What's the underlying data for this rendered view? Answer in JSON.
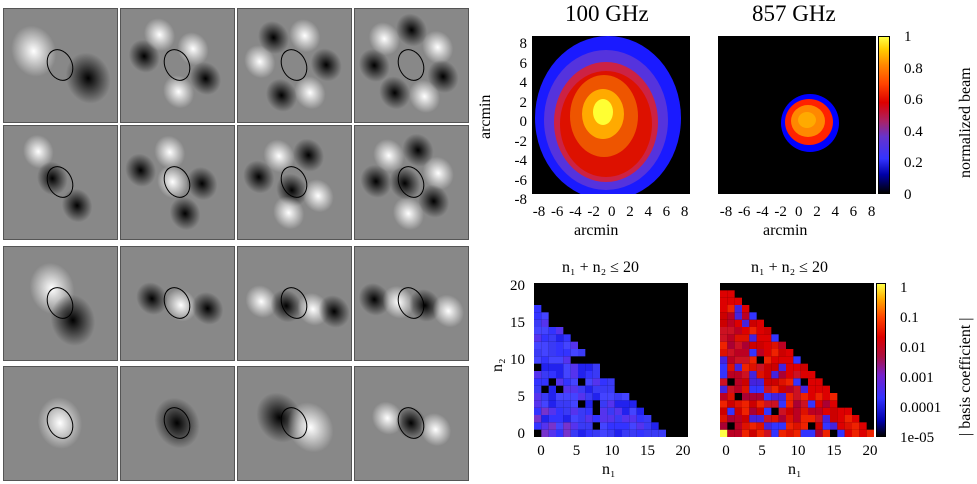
{
  "tiles": [
    {
      "pattern": "two-lobe-dark-left"
    },
    {
      "pattern": "three-lobe"
    },
    {
      "pattern": "four-lobe"
    },
    {
      "pattern": "five-lobe"
    },
    {
      "pattern": "two-lobe-dark-center"
    },
    {
      "pattern": "three-lobe-dark"
    },
    {
      "pattern": "four-lobe-dark"
    },
    {
      "pattern": "five-lobe-dark"
    },
    {
      "pattern": "dipole-vertical"
    },
    {
      "pattern": "dipole-diagonal"
    },
    {
      "pattern": "triple-lobe-diagonal"
    },
    {
      "pattern": "quad-lobe-diagonal"
    },
    {
      "pattern": "monopole-bright"
    },
    {
      "pattern": "monopole-dark"
    },
    {
      "pattern": "dipole-dark-bright"
    },
    {
      "pattern": "triple-dark-bright"
    }
  ],
  "beam_panels": [
    {
      "title": "100 GHz",
      "xlabel": "arcmin",
      "ylabel": "arcmin"
    },
    {
      "title": "857 GHz",
      "xlabel": "arcmin"
    }
  ],
  "beam_ticks": [
    "-8",
    "-6",
    "-4",
    "-2",
    "0",
    "2",
    "4",
    "6",
    "8"
  ],
  "beam_colorbar": {
    "label": "normalized beam",
    "ticks": [
      "1",
      "0.8",
      "0.6",
      "0.4",
      "0.2",
      "0"
    ]
  },
  "coef_panels": [
    {
      "title": "n₁ + n₂ ≤ 20",
      "xlabel": "n₁",
      "ylabel": "n₂"
    },
    {
      "title": "n₁ + n₂ ≤ 20",
      "xlabel": "n₁"
    }
  ],
  "coef_xticks": [
    "0",
    "5",
    "10",
    "15",
    "20"
  ],
  "coef_yticks": [
    "20",
    "15",
    "10",
    "5",
    "0"
  ],
  "coef_colorbar": {
    "label": "| basis coefficient |",
    "ticks": [
      "1",
      "0.1",
      "0.01",
      "0.001",
      "0.0001",
      "1e-05"
    ]
  }
}
